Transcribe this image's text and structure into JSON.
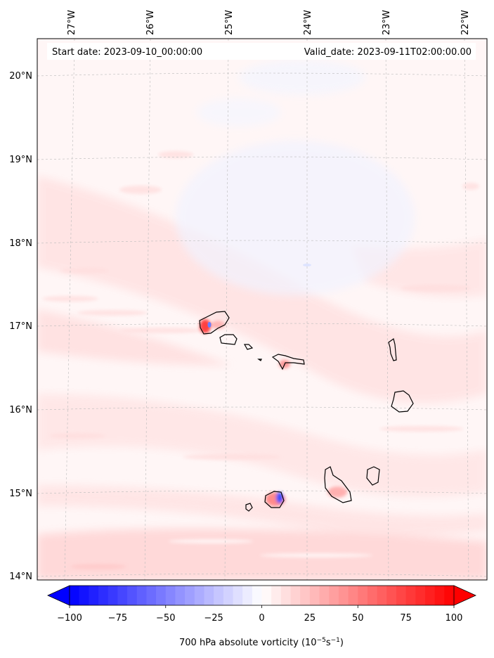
{
  "header": {
    "start_date": "Start date: 2023-09-10_00:00:00",
    "valid_date": "Valid_date: 2023-09-11T02:00:00.00"
  },
  "map": {
    "longitude_labels": [
      "27°W",
      "26°W",
      "25°W",
      "24°W",
      "23°W",
      "22°W"
    ],
    "latitude_labels": [
      "20°N",
      "19°N",
      "18°N",
      "17°N",
      "16°N",
      "15°N",
      "14°N"
    ],
    "gridlines": "dashed",
    "coastline_color": "#000000"
  },
  "colorbar": {
    "min": -100,
    "max": 100,
    "extend": "both",
    "tick_labels": [
      "−100",
      "−75",
      "−50",
      "−25",
      "0",
      "25",
      "50",
      "75",
      "100"
    ],
    "label": "700 hPa absolute vorticity (10",
    "label_exp1": "−5",
    "label_mid": "s",
    "label_exp2": "−1",
    "label_end": ")",
    "colormap": "bwr",
    "low_color": "#0000ff",
    "mid_color": "#ffffff",
    "high_color": "#ff0000"
  }
}
